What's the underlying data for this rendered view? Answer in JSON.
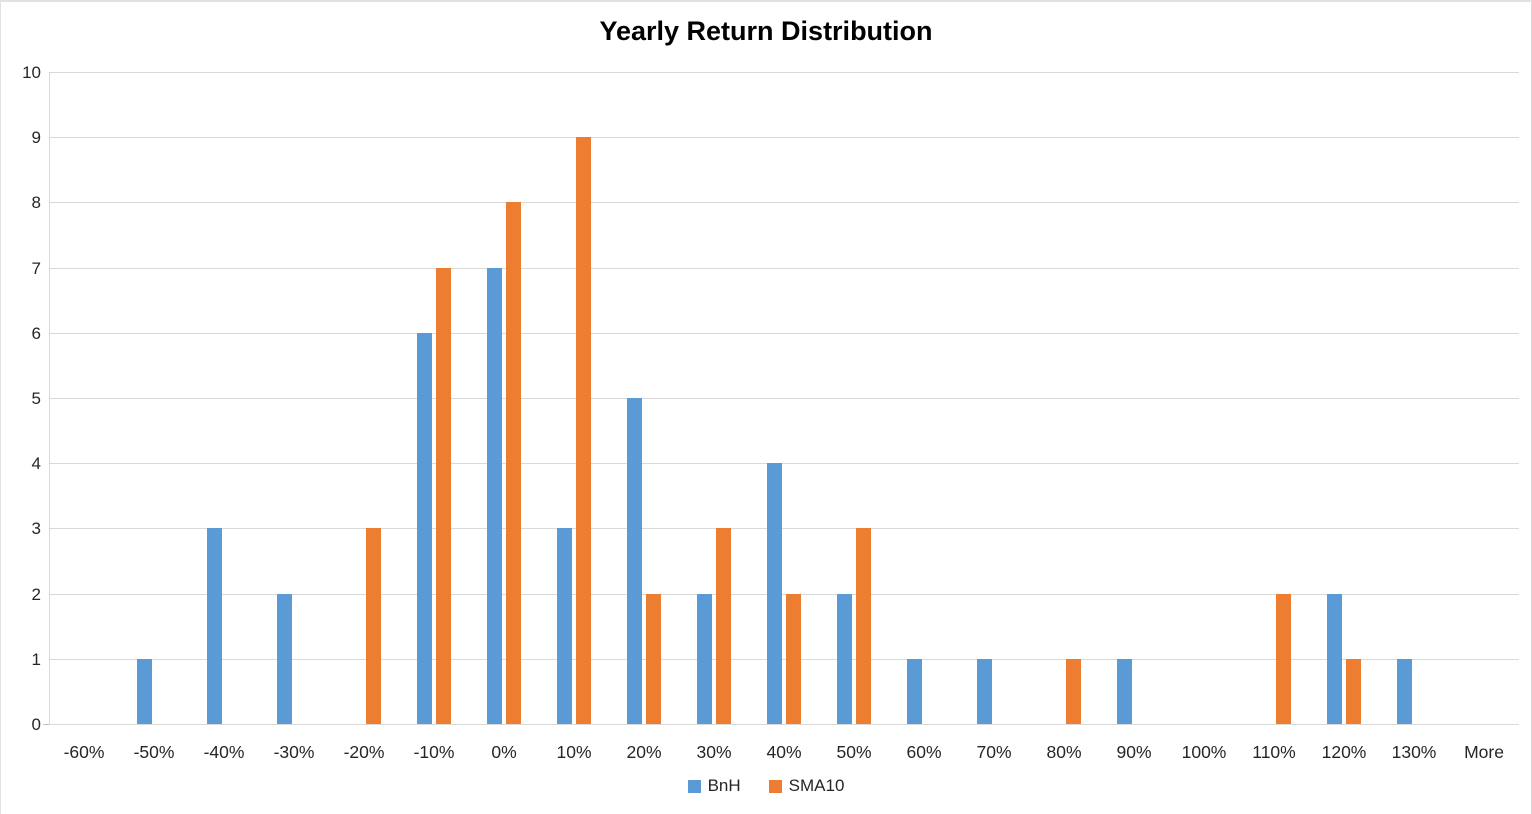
{
  "chart": {
    "title": "Yearly Return Distribution"
  },
  "chart_data": {
    "type": "bar",
    "subtype": "grouped",
    "title": "Yearly Return Distribution",
    "xlabel": "",
    "ylabel": "",
    "categories": [
      "-60%",
      "-50%",
      "-40%",
      "-30%",
      "-20%",
      "-10%",
      "0%",
      "10%",
      "20%",
      "30%",
      "40%",
      "50%",
      "60%",
      "70%",
      "80%",
      "90%",
      "100%",
      "110%",
      "120%",
      "130%",
      "More"
    ],
    "series": [
      {
        "name": "BnH",
        "color": "#5B9BD5",
        "values": [
          0,
          1,
          3,
          2,
          0,
          6,
          7,
          3,
          5,
          2,
          4,
          2,
          1,
          1,
          0,
          1,
          0,
          0,
          2,
          1,
          0
        ]
      },
      {
        "name": "SMA10",
        "color": "#ED7D31",
        "values": [
          0,
          0,
          0,
          0,
          3,
          7,
          8,
          9,
          2,
          3,
          2,
          3,
          0,
          0,
          1,
          0,
          0,
          2,
          1,
          0,
          0
        ]
      }
    ],
    "ylim": [
      0,
      10
    ],
    "yticks": [
      0,
      1,
      2,
      3,
      4,
      5,
      6,
      7,
      8,
      9,
      10
    ],
    "grid": "horizontal",
    "gridline_color": "#D9D9D9",
    "axis_line_color": "#BFBFBF",
    "tick_label_color": "#262626",
    "legend_position": "bottom-center"
  }
}
